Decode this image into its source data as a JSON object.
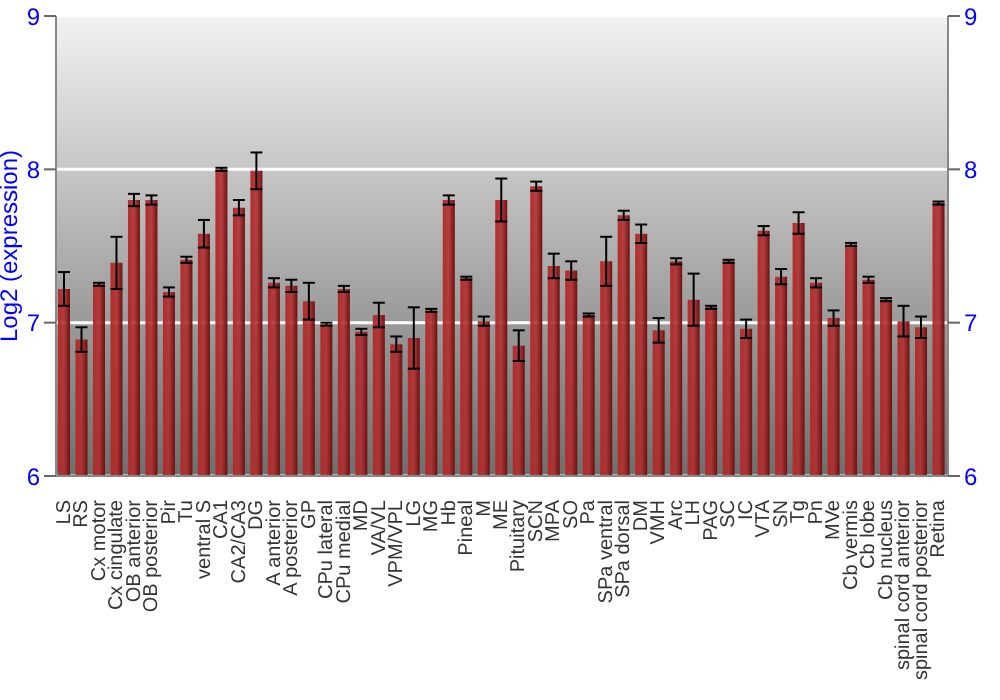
{
  "chart_data": {
    "type": "bar",
    "ylabel": "Log2 (expression)",
    "categories": [
      "LS",
      "RS",
      "Cx motor",
      "Cx cingulate",
      "OB anterior",
      "OB posterior",
      "Pir",
      "Tu",
      "ventral S",
      "CA1",
      "CA2/CA3",
      "DG",
      "A anterior",
      "A posterior",
      "GP",
      "CPu lateral",
      "CPu medial",
      "MD",
      "VA/VL",
      "VPM/VPL",
      "LG",
      "MG",
      "Hb",
      "Pineal",
      "M",
      "ME",
      "Pituitary",
      "SCN",
      "MPA",
      "SO",
      "Pa",
      "SPa ventral",
      "SPa dorsal",
      "DM",
      "VMH",
      "Arc",
      "LH",
      "PAG",
      "SC",
      "IC",
      "VTA",
      "SN",
      "Tg",
      "Pn",
      "MVe",
      "Cb vermis",
      "Cb lobe",
      "Cb nucleus",
      "spinal cord anterior",
      "spinal cord posterior",
      "Retina"
    ],
    "values": [
      7.22,
      6.89,
      7.25,
      7.39,
      7.8,
      7.8,
      7.2,
      7.41,
      7.58,
      8.0,
      7.75,
      7.99,
      7.26,
      7.24,
      7.14,
      6.99,
      7.22,
      6.94,
      7.05,
      6.86,
      6.9,
      7.08,
      7.8,
      7.29,
      7.01,
      7.8,
      6.85,
      7.89,
      7.37,
      7.34,
      7.05,
      7.4,
      7.7,
      7.58,
      6.95,
      7.4,
      7.15,
      7.1,
      7.4,
      6.96,
      7.6,
      7.3,
      7.65,
      7.26,
      7.03,
      7.51,
      7.28,
      7.15,
      7.01,
      6.97,
      7.78
    ],
    "errors": [
      0.11,
      0.08,
      0.01,
      0.17,
      0.04,
      0.03,
      0.03,
      0.02,
      0.09,
      0.01,
      0.05,
      0.12,
      0.03,
      0.04,
      0.12,
      0.01,
      0.02,
      0.02,
      0.08,
      0.05,
      0.2,
      0.01,
      0.03,
      0.01,
      0.03,
      0.14,
      0.1,
      0.03,
      0.08,
      0.06,
      0.01,
      0.16,
      0.03,
      0.06,
      0.08,
      0.02,
      0.17,
      0.01,
      0.01,
      0.06,
      0.03,
      0.05,
      0.07,
      0.03,
      0.05,
      0.01,
      0.02,
      0.01,
      0.1,
      0.07,
      0.01
    ],
    "color": "#b22b2b",
    "ylim": [
      6,
      9
    ],
    "yticks": [
      6,
      7,
      8,
      9
    ],
    "y2lim": [
      6,
      9
    ],
    "y2ticks": [
      6,
      7,
      8,
      9
    ],
    "grid": "y"
  }
}
